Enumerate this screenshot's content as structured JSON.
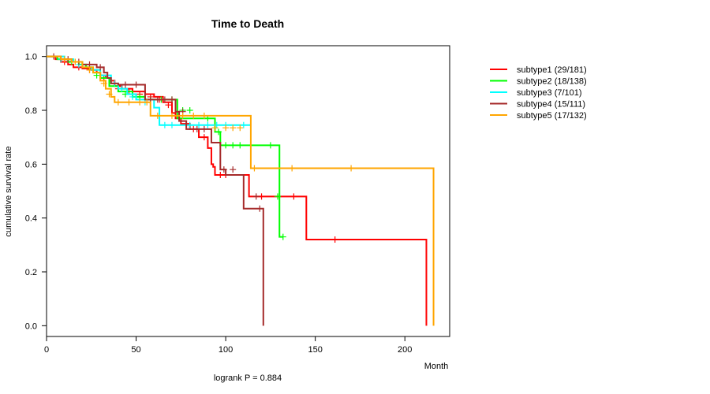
{
  "chart_data": {
    "type": "line",
    "subtype": "kaplan-meier",
    "title": "Time to Death",
    "xlabel": "Month",
    "ylabel": "cumulative survival rate",
    "annotation": "logrank P = 0.884",
    "xlim": [
      0,
      225
    ],
    "ylim": [
      -0.04,
      1.04
    ],
    "x_ticks": [
      0,
      50,
      100,
      150,
      200
    ],
    "y_ticks": [
      0.0,
      0.2,
      0.4,
      0.6,
      0.8,
      1.0
    ],
    "legend_position": "top-right outside",
    "series": [
      {
        "name": "subtype1 (29/181)",
        "color": "#ff0000",
        "steps": [
          [
            0,
            1.0
          ],
          [
            5,
            0.99
          ],
          [
            8,
            0.98
          ],
          [
            12,
            0.97
          ],
          [
            15,
            0.96
          ],
          [
            20,
            0.955
          ],
          [
            25,
            0.95
          ],
          [
            28,
            0.94
          ],
          [
            30,
            0.93
          ],
          [
            33,
            0.92
          ],
          [
            35,
            0.91
          ],
          [
            38,
            0.89
          ],
          [
            42,
            0.88
          ],
          [
            48,
            0.87
          ],
          [
            55,
            0.86
          ],
          [
            60,
            0.85
          ],
          [
            65,
            0.83
          ],
          [
            70,
            0.79
          ],
          [
            72,
            0.77
          ],
          [
            75,
            0.75
          ],
          [
            80,
            0.73
          ],
          [
            85,
            0.7
          ],
          [
            90,
            0.66
          ],
          [
            92,
            0.6
          ],
          [
            93,
            0.59
          ],
          [
            94,
            0.56
          ],
          [
            110,
            0.56
          ],
          [
            113,
            0.48
          ],
          [
            145,
            0.48
          ],
          [
            145,
            0.32
          ],
          [
            212,
            0.32
          ],
          [
            212,
            0.0
          ]
        ],
        "censors": [
          [
            10,
            0.98
          ],
          [
            18,
            0.96
          ],
          [
            24,
            0.95
          ],
          [
            32,
            0.92
          ],
          [
            40,
            0.88
          ],
          [
            46,
            0.87
          ],
          [
            52,
            0.86
          ],
          [
            58,
            0.85
          ],
          [
            63,
            0.84
          ],
          [
            68,
            0.82
          ],
          [
            74,
            0.77
          ],
          [
            78,
            0.75
          ],
          [
            82,
            0.73
          ],
          [
            88,
            0.7
          ],
          [
            97,
            0.56
          ],
          [
            100,
            0.56
          ],
          [
            120,
            0.48
          ],
          [
            138,
            0.48
          ],
          [
            161,
            0.32
          ]
        ]
      },
      {
        "name": "subtype2 (18/138)",
        "color": "#00ff00",
        "steps": [
          [
            0,
            1.0
          ],
          [
            6,
            0.99
          ],
          [
            12,
            0.98
          ],
          [
            18,
            0.97
          ],
          [
            22,
            0.96
          ],
          [
            26,
            0.94
          ],
          [
            30,
            0.92
          ],
          [
            35,
            0.89
          ],
          [
            40,
            0.87
          ],
          [
            48,
            0.85
          ],
          [
            55,
            0.84
          ],
          [
            73,
            0.84
          ],
          [
            73,
            0.77
          ],
          [
            94,
            0.77
          ],
          [
            94,
            0.72
          ],
          [
            97,
            0.72
          ],
          [
            97,
            0.67
          ],
          [
            130,
            0.67
          ],
          [
            130,
            0.33
          ],
          [
            132,
            0.33
          ]
        ],
        "censors": [
          [
            14,
            0.98
          ],
          [
            28,
            0.93
          ],
          [
            44,
            0.86
          ],
          [
            52,
            0.85
          ],
          [
            58,
            0.84
          ],
          [
            64,
            0.84
          ],
          [
            70,
            0.84
          ],
          [
            76,
            0.8
          ],
          [
            80,
            0.8
          ],
          [
            90,
            0.77
          ],
          [
            96,
            0.72
          ],
          [
            100,
            0.67
          ],
          [
            104,
            0.67
          ],
          [
            108,
            0.67
          ],
          [
            125,
            0.67
          ],
          [
            129,
            0.48
          ],
          [
            132,
            0.33
          ]
        ]
      },
      {
        "name": "subtype3 (7/101)",
        "color": "#00ffff",
        "steps": [
          [
            0,
            1.0
          ],
          [
            10,
            0.99
          ],
          [
            15,
            0.98
          ],
          [
            20,
            0.96
          ],
          [
            25,
            0.95
          ],
          [
            30,
            0.93
          ],
          [
            36,
            0.9
          ],
          [
            40,
            0.88
          ],
          [
            45,
            0.86
          ],
          [
            50,
            0.84
          ],
          [
            60,
            0.81
          ],
          [
            63,
            0.81
          ],
          [
            63,
            0.745
          ],
          [
            114,
            0.745
          ]
        ],
        "censors": [
          [
            8,
            0.99
          ],
          [
            18,
            0.97
          ],
          [
            26,
            0.95
          ],
          [
            34,
            0.93
          ],
          [
            38,
            0.9
          ],
          [
            42,
            0.88
          ],
          [
            48,
            0.85
          ],
          [
            55,
            0.83
          ],
          [
            66,
            0.745
          ],
          [
            70,
            0.745
          ],
          [
            80,
            0.745
          ],
          [
            85,
            0.745
          ],
          [
            90,
            0.745
          ],
          [
            95,
            0.745
          ],
          [
            100,
            0.745
          ],
          [
            110,
            0.745
          ]
        ]
      },
      {
        "name": "subtype4 (15/111)",
        "color": "#a52a2a",
        "steps": [
          [
            0,
            1.0
          ],
          [
            8,
            0.99
          ],
          [
            14,
            0.98
          ],
          [
            20,
            0.97
          ],
          [
            28,
            0.96
          ],
          [
            32,
            0.94
          ],
          [
            34,
            0.92
          ],
          [
            36,
            0.9
          ],
          [
            40,
            0.895
          ],
          [
            55,
            0.895
          ],
          [
            55,
            0.84
          ],
          [
            72,
            0.84
          ],
          [
            72,
            0.795
          ],
          [
            74,
            0.795
          ],
          [
            74,
            0.76
          ],
          [
            78,
            0.76
          ],
          [
            78,
            0.73
          ],
          [
            92,
            0.73
          ],
          [
            92,
            0.68
          ],
          [
            97,
            0.68
          ],
          [
            97,
            0.58
          ],
          [
            100,
            0.58
          ],
          [
            100,
            0.56
          ],
          [
            110,
            0.56
          ],
          [
            110,
            0.435
          ],
          [
            121,
            0.435
          ],
          [
            121,
            0.0
          ]
        ],
        "censors": [
          [
            4,
            1.0
          ],
          [
            12,
            0.99
          ],
          [
            18,
            0.98
          ],
          [
            24,
            0.97
          ],
          [
            30,
            0.96
          ],
          [
            44,
            0.895
          ],
          [
            50,
            0.895
          ],
          [
            58,
            0.84
          ],
          [
            62,
            0.84
          ],
          [
            66,
            0.84
          ],
          [
            70,
            0.84
          ],
          [
            76,
            0.795
          ],
          [
            84,
            0.73
          ],
          [
            88,
            0.73
          ],
          [
            99,
            0.58
          ],
          [
            104,
            0.58
          ],
          [
            117,
            0.48
          ],
          [
            119,
            0.435
          ]
        ]
      },
      {
        "name": "subtype5 (17/132)",
        "color": "#ffa500",
        "steps": [
          [
            0,
            1.0
          ],
          [
            8,
            0.99
          ],
          [
            14,
            0.98
          ],
          [
            20,
            0.96
          ],
          [
            26,
            0.94
          ],
          [
            30,
            0.91
          ],
          [
            33,
            0.88
          ],
          [
            36,
            0.85
          ],
          [
            38,
            0.83
          ],
          [
            58,
            0.83
          ],
          [
            58,
            0.78
          ],
          [
            114,
            0.78
          ],
          [
            114,
            0.735
          ],
          [
            114,
            0.585
          ],
          [
            216,
            0.585
          ],
          [
            216,
            0.0
          ]
        ],
        "censors": [
          [
            10,
            0.99
          ],
          [
            16,
            0.98
          ],
          [
            24,
            0.95
          ],
          [
            32,
            0.9
          ],
          [
            35,
            0.86
          ],
          [
            40,
            0.83
          ],
          [
            46,
            0.83
          ],
          [
            52,
            0.83
          ],
          [
            56,
            0.83
          ],
          [
            62,
            0.78
          ],
          [
            70,
            0.78
          ],
          [
            76,
            0.78
          ],
          [
            82,
            0.78
          ],
          [
            88,
            0.78
          ],
          [
            94,
            0.735
          ],
          [
            100,
            0.735
          ],
          [
            104,
            0.735
          ],
          [
            108,
            0.735
          ],
          [
            116,
            0.585
          ],
          [
            137,
            0.585
          ],
          [
            170,
            0.585
          ]
        ]
      }
    ]
  }
}
